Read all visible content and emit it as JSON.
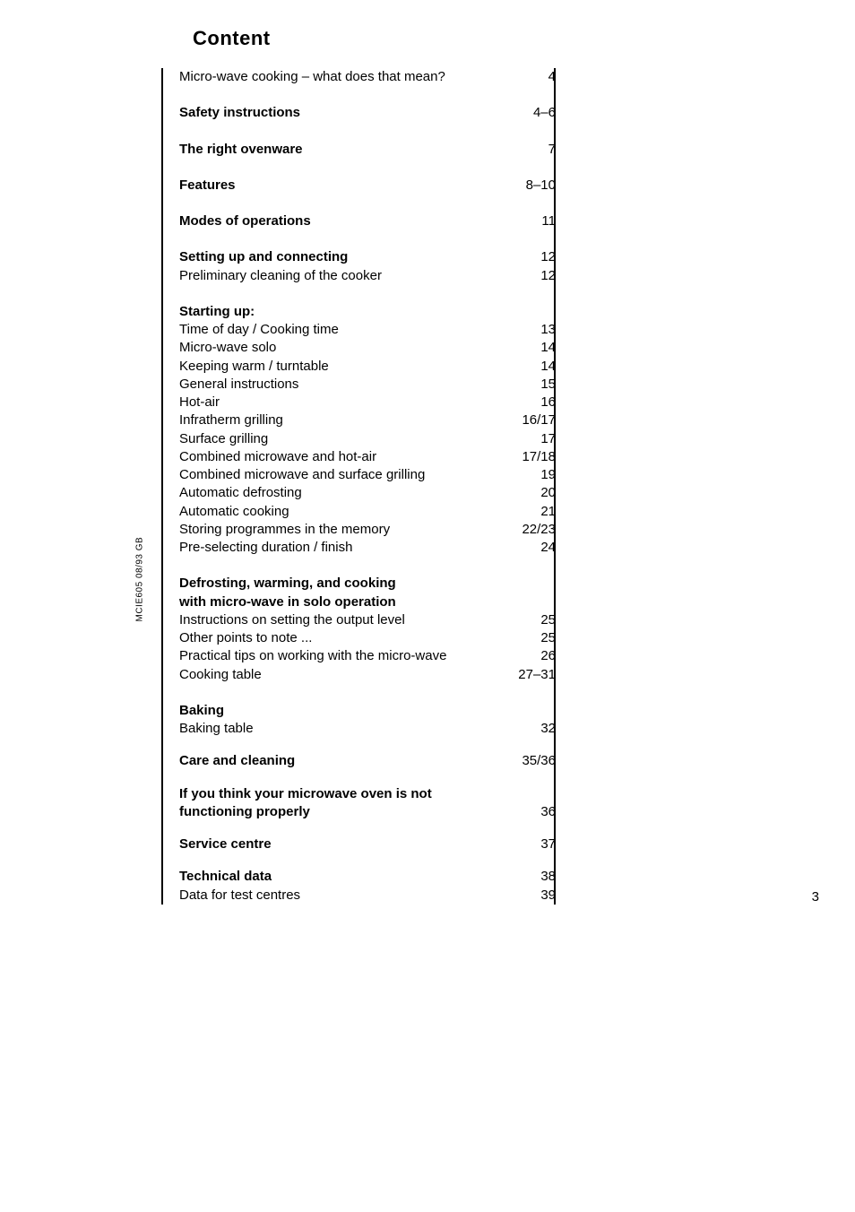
{
  "title": "Content",
  "sidebar": "MCIE605 08/93    GB",
  "page_number": "3",
  "entries": [
    {
      "label": "Micro-wave cooking – what does that mean?",
      "page": "4",
      "bold": false,
      "gap_after": "section-gap"
    },
    {
      "label": "Safety instructions",
      "page": "4–6",
      "bold": true,
      "gap_after": "section-gap"
    },
    {
      "label": "The right ovenware",
      "page": "7",
      "bold": true,
      "gap_after": "section-gap"
    },
    {
      "label": "Features",
      "page": "8–10",
      "bold": true,
      "gap_after": "section-gap"
    },
    {
      "label": "Modes of operations",
      "page": "11",
      "bold": true,
      "gap_after": "section-gap"
    },
    {
      "label": "Setting up and connecting",
      "page": "12",
      "bold": true,
      "gap_after": ""
    },
    {
      "label": "Preliminary cleaning of the cooker",
      "page": "12",
      "bold": false,
      "gap_after": "section-gap"
    },
    {
      "label": "Starting up:",
      "page": "",
      "bold": true,
      "gap_after": ""
    },
    {
      "label": "Time of day / Cooking time",
      "page": "13",
      "bold": false,
      "gap_after": ""
    },
    {
      "label": "Micro-wave solo",
      "page": "14",
      "bold": false,
      "gap_after": ""
    },
    {
      "label": "Keeping warm / turntable",
      "page": "14",
      "bold": false,
      "gap_after": ""
    },
    {
      "label": "General instructions",
      "page": "15",
      "bold": false,
      "gap_after": ""
    },
    {
      "label": "Hot-air",
      "page": "16",
      "bold": false,
      "gap_after": ""
    },
    {
      "label": "Infratherm grilling",
      "page": "16/17",
      "bold": false,
      "gap_after": ""
    },
    {
      "label": "Surface grilling",
      "page": "17",
      "bold": false,
      "gap_after": ""
    },
    {
      "label": "Combined microwave and hot-air",
      "page": "17/18",
      "bold": false,
      "gap_after": ""
    },
    {
      "label": "Combined microwave and surface grilling",
      "page": "19",
      "bold": false,
      "gap_after": ""
    },
    {
      "label": "Automatic defrosting",
      "page": "20",
      "bold": false,
      "gap_after": ""
    },
    {
      "label": "Automatic cooking",
      "page": "21",
      "bold": false,
      "gap_after": ""
    },
    {
      "label": "Storing programmes in the memory",
      "page": "22/23",
      "bold": false,
      "gap_after": ""
    },
    {
      "label": "Pre-selecting duration / finish",
      "page": "24",
      "bold": false,
      "gap_after": "section-gap"
    },
    {
      "label": "Defrosting, warming, and cooking",
      "page": "",
      "bold": true,
      "gap_after": ""
    },
    {
      "label": "with micro-wave in solo operation",
      "page": "",
      "bold": true,
      "gap_after": ""
    },
    {
      "label": "Instructions on setting the output level",
      "page": "25",
      "bold": false,
      "gap_after": ""
    },
    {
      "label": "Other points to note ...",
      "page": "25",
      "bold": false,
      "gap_after": ""
    },
    {
      "label": "Practical tips on working with the micro-wave",
      "page": "26",
      "bold": false,
      "gap_after": ""
    },
    {
      "label": "Cooking table",
      "page": "27–31",
      "bold": false,
      "gap_after": "section-gap"
    },
    {
      "label": "Baking",
      "page": "",
      "bold": true,
      "gap_after": ""
    },
    {
      "label": "Baking table",
      "page": "32",
      "bold": false,
      "gap_after": "section-gap-md"
    },
    {
      "label": "Care and cleaning",
      "page": "35/36",
      "bold": true,
      "gap_after": "section-gap-md"
    },
    {
      "label": "If you think your microwave oven is not",
      "page": "",
      "bold": true,
      "gap_after": ""
    },
    {
      "label": "functioning properly",
      "page": "36",
      "bold": true,
      "gap_after": "section-gap-md"
    },
    {
      "label": "Service centre",
      "page": "37",
      "bold": true,
      "gap_after": "section-gap-md"
    },
    {
      "label": "Technical data",
      "page": "38",
      "bold": true,
      "gap_after": ""
    },
    {
      "label": "Data for test centres",
      "page": "39",
      "bold": false,
      "gap_after": ""
    }
  ]
}
